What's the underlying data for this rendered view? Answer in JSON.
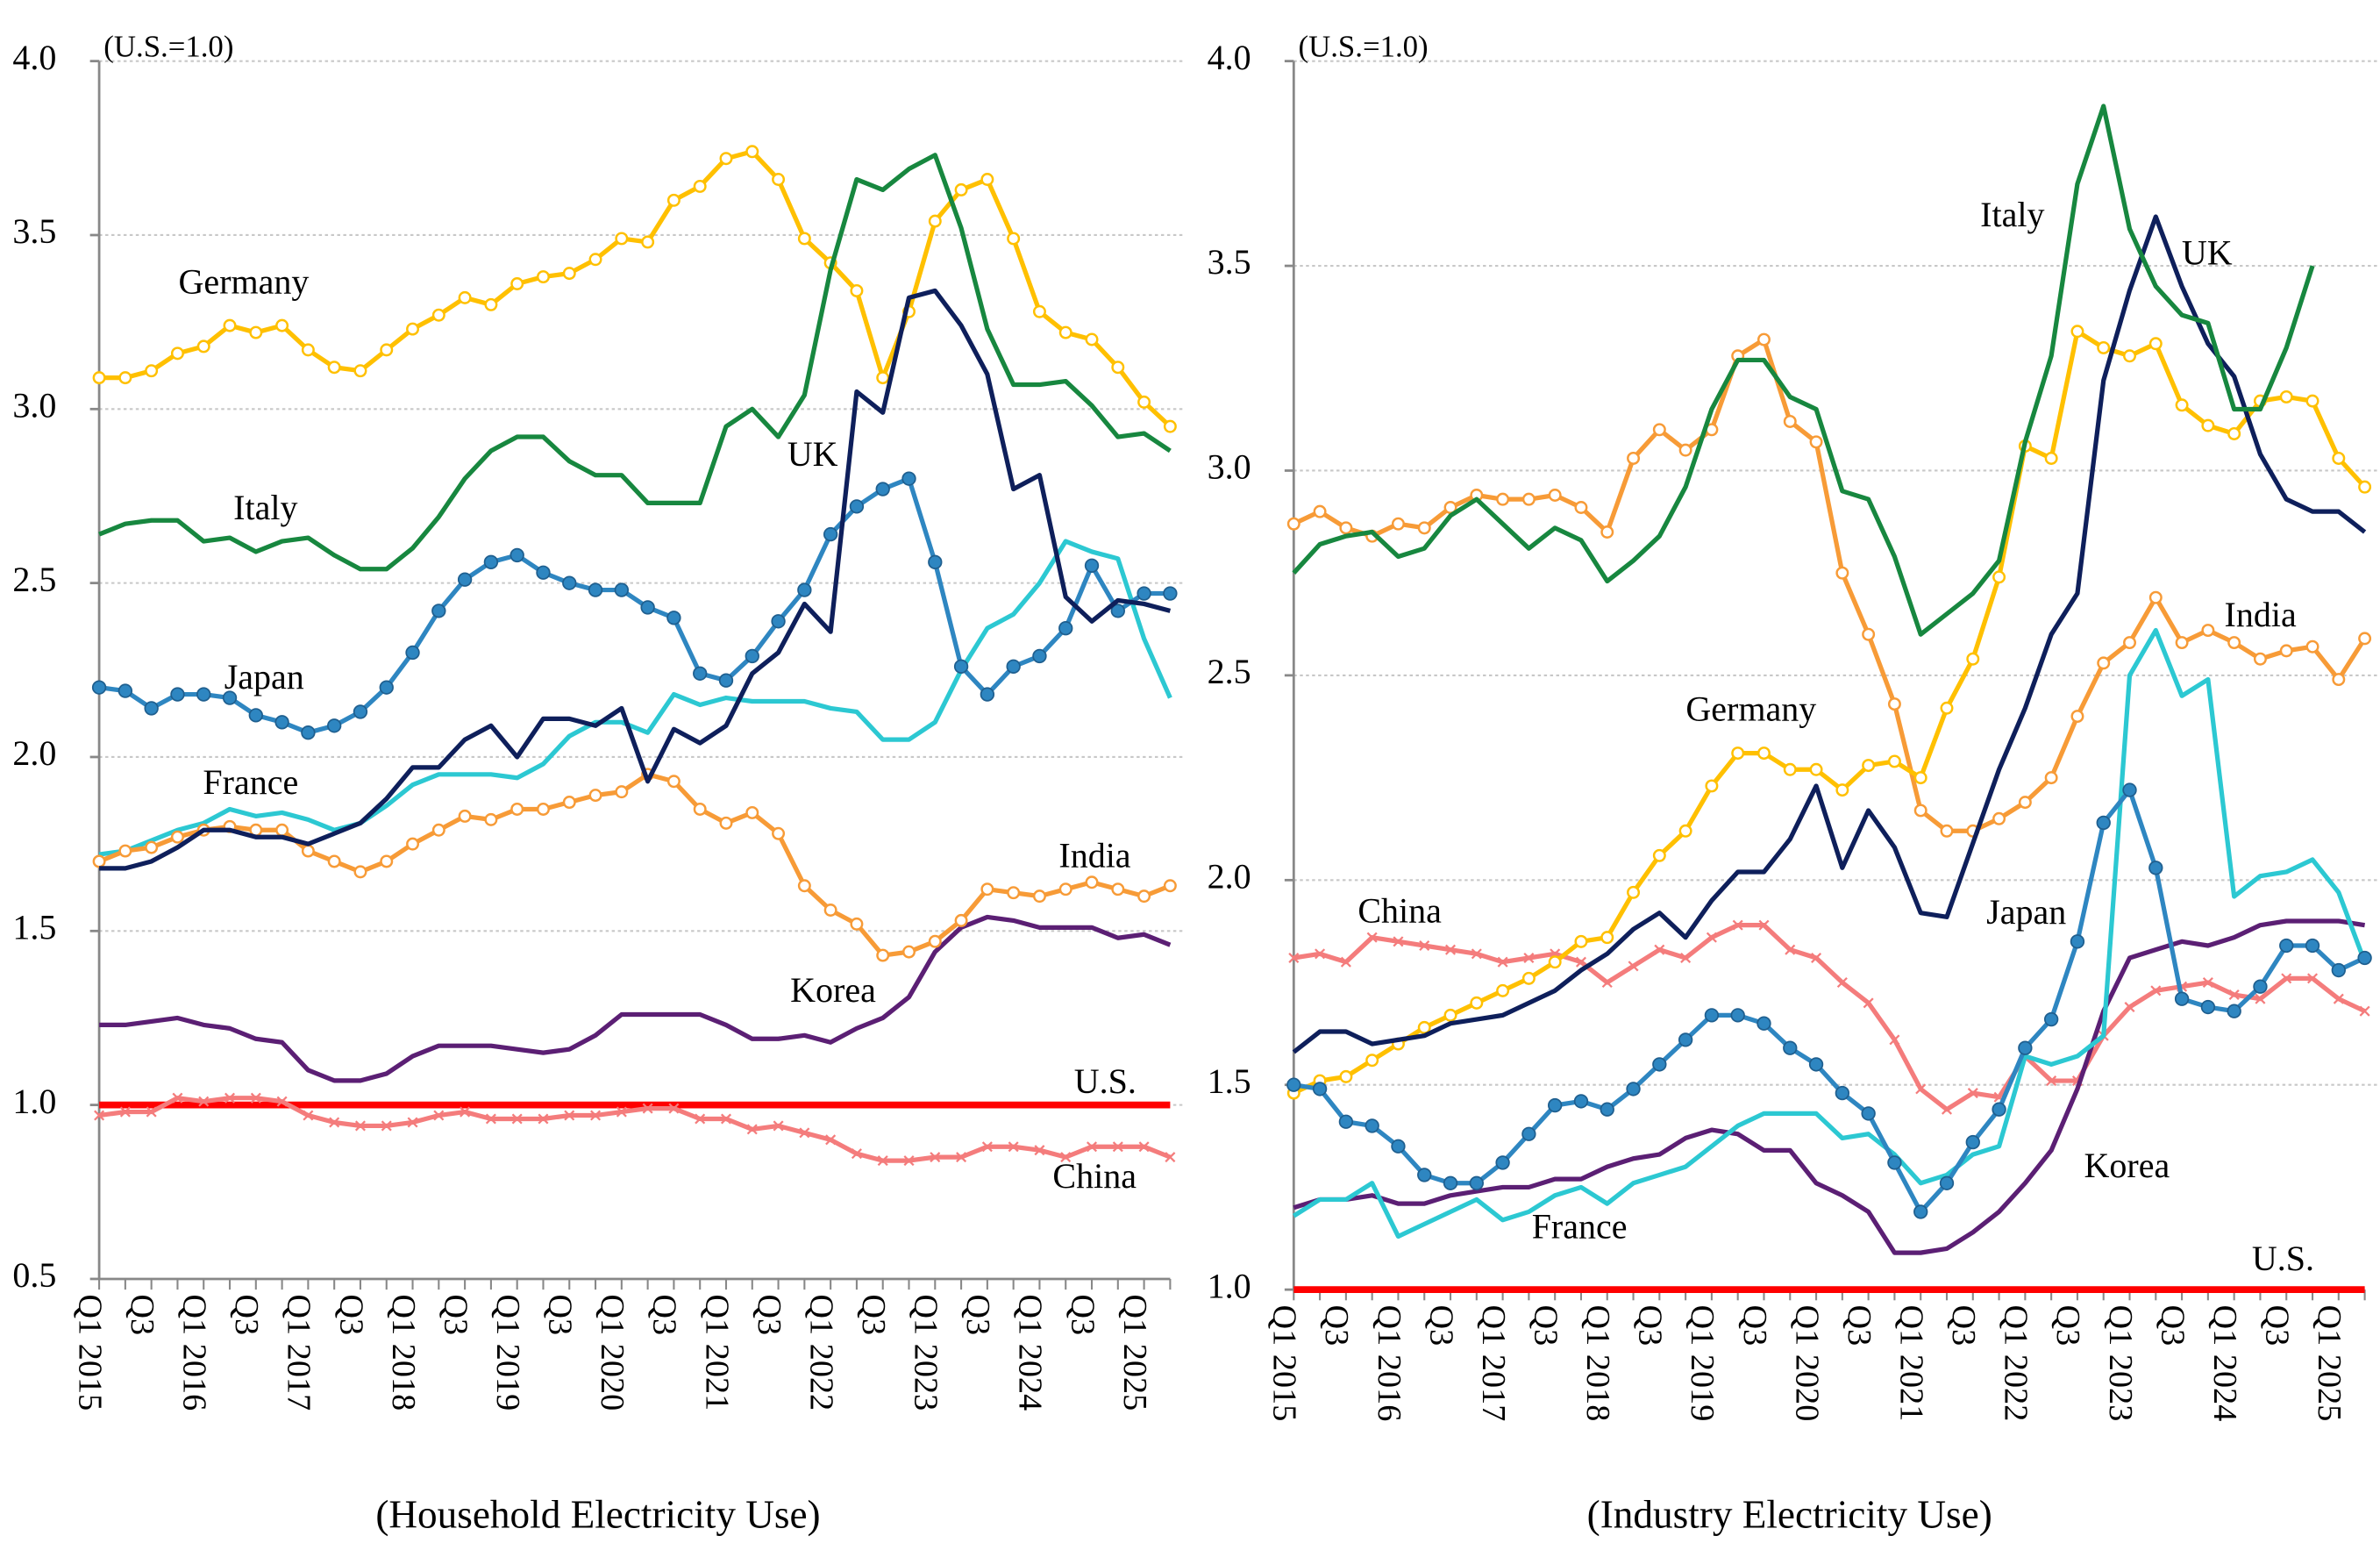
{
  "chart_data": [
    {
      "type": "line",
      "caption": "(Household Electricity Use)",
      "unit_label": "(U.S.=1.0)",
      "ylim": [
        0.5,
        4.0
      ],
      "yticks": [
        "0.5",
        "1.0",
        "1.5",
        "2.0",
        "2.5",
        "3.0",
        "3.5",
        "4.0"
      ],
      "grid": true,
      "x_start": "Q1 2015",
      "x_end": "Q2 2025",
      "series": [
        {
          "name": "Germany",
          "color": "#FFC000",
          "marker": "open-circle",
          "values": [
            3.09,
            3.09,
            3.11,
            3.16,
            3.18,
            3.24,
            3.22,
            3.24,
            3.17,
            3.12,
            3.11,
            3.17,
            3.23,
            3.27,
            3.32,
            3.3,
            3.36,
            3.38,
            3.39,
            3.43,
            3.49,
            3.48,
            3.6,
            3.64,
            3.72,
            3.74,
            3.66,
            3.49,
            3.42,
            3.34,
            3.09,
            3.28,
            3.54,
            3.63,
            3.66,
            3.49,
            3.28,
            3.22,
            3.2,
            3.12,
            3.02,
            2.95
          ]
        },
        {
          "name": "Italy",
          "color": "#17873F",
          "marker": "none",
          "values": [
            2.64,
            2.67,
            2.68,
            2.68,
            2.62,
            2.63,
            2.59,
            2.62,
            2.63,
            2.58,
            2.54,
            2.54,
            2.6,
            2.69,
            2.8,
            2.88,
            2.92,
            2.92,
            2.85,
            2.81,
            2.81,
            2.73,
            2.73,
            2.73,
            2.95,
            3.0,
            2.92,
            3.04,
            3.4,
            3.66,
            3.63,
            3.69,
            3.73,
            3.52,
            3.23,
            3.07,
            3.07,
            3.08,
            3.01,
            2.92,
            2.93,
            2.88
          ]
        },
        {
          "name": "UK",
          "color": "#0E1F5B",
          "marker": "none",
          "values": [
            1.68,
            1.68,
            1.7,
            1.74,
            1.79,
            1.79,
            1.77,
            1.77,
            1.75,
            1.78,
            1.81,
            1.88,
            1.97,
            1.97,
            2.05,
            2.09,
            2.0,
            2.11,
            2.11,
            2.09,
            2.14,
            1.93,
            2.08,
            2.04,
            2.09,
            2.24,
            2.3,
            2.44,
            2.36,
            3.05,
            2.99,
            3.32,
            3.34,
            3.24,
            3.1,
            2.77,
            2.81,
            2.46,
            2.39,
            2.45,
            2.44,
            2.42
          ]
        },
        {
          "name": "Japan",
          "color": "#2E86C1",
          "marker": "filled-circle",
          "values": [
            2.2,
            2.19,
            2.14,
            2.18,
            2.18,
            2.17,
            2.12,
            2.1,
            2.07,
            2.09,
            2.13,
            2.2,
            2.3,
            2.42,
            2.51,
            2.56,
            2.58,
            2.53,
            2.5,
            2.48,
            2.48,
            2.43,
            2.4,
            2.24,
            2.22,
            2.29,
            2.39,
            2.48,
            2.64,
            2.72,
            2.77,
            2.8,
            2.56,
            2.26,
            2.18,
            2.26,
            2.29,
            2.37,
            2.55,
            2.42,
            2.47,
            2.47
          ]
        },
        {
          "name": "France",
          "color": "#2CC8D2",
          "marker": "none",
          "values": [
            1.72,
            1.73,
            1.76,
            1.79,
            1.81,
            1.85,
            1.83,
            1.84,
            1.82,
            1.79,
            1.81,
            1.86,
            1.92,
            1.95,
            1.95,
            1.95,
            1.94,
            1.98,
            2.06,
            2.1,
            2.1,
            2.07,
            2.18,
            2.15,
            2.17,
            2.16,
            2.16,
            2.16,
            2.14,
            2.13,
            2.05,
            2.05,
            2.1,
            2.25,
            2.37,
            2.41,
            2.5,
            2.62,
            2.59,
            2.57,
            2.34,
            2.17
          ]
        },
        {
          "name": "India",
          "color": "#F79B37",
          "marker": "open-circle",
          "values": [
            1.7,
            1.73,
            1.74,
            1.77,
            1.79,
            1.8,
            1.79,
            1.79,
            1.73,
            1.7,
            1.67,
            1.7,
            1.75,
            1.79,
            1.83,
            1.82,
            1.85,
            1.85,
            1.87,
            1.89,
            1.9,
            1.95,
            1.93,
            1.85,
            1.81,
            1.84,
            1.78,
            1.63,
            1.56,
            1.52,
            1.43,
            1.44,
            1.47,
            1.53,
            1.62,
            1.61,
            1.6,
            1.62,
            1.64,
            1.62,
            1.6,
            1.63
          ]
        },
        {
          "name": "Korea",
          "color": "#5B1F74",
          "marker": "none",
          "values": [
            1.23,
            1.23,
            1.24,
            1.25,
            1.23,
            1.22,
            1.19,
            1.18,
            1.1,
            1.07,
            1.07,
            1.09,
            1.14,
            1.17,
            1.17,
            1.17,
            1.16,
            1.15,
            1.16,
            1.2,
            1.26,
            1.26,
            1.26,
            1.26,
            1.23,
            1.19,
            1.19,
            1.2,
            1.18,
            1.22,
            1.25,
            1.31,
            1.44,
            1.51,
            1.54,
            1.53,
            1.51,
            1.51,
            1.51,
            1.48,
            1.49,
            1.46
          ]
        },
        {
          "name": "China",
          "color": "#F47C7C",
          "marker": "x",
          "values": [
            0.97,
            0.98,
            0.98,
            1.02,
            1.01,
            1.02,
            1.02,
            1.01,
            0.97,
            0.95,
            0.94,
            0.94,
            0.95,
            0.97,
            0.98,
            0.96,
            0.96,
            0.96,
            0.97,
            0.97,
            0.98,
            0.99,
            0.99,
            0.96,
            0.96,
            0.93,
            0.94,
            0.92,
            0.9,
            0.86,
            0.84,
            0.84,
            0.85,
            0.85,
            0.88,
            0.88,
            0.87,
            0.85,
            0.88,
            0.88,
            0.88,
            0.85
          ]
        },
        {
          "name": "U.S.",
          "color": "#FF0000",
          "marker": "none",
          "values": [
            1,
            1,
            1,
            1,
            1,
            1,
            1,
            1,
            1,
            1,
            1,
            1,
            1,
            1,
            1,
            1,
            1,
            1,
            1,
            1,
            1,
            1,
            1,
            1,
            1,
            1,
            1,
            1,
            1,
            1,
            1,
            1,
            1,
            1,
            1,
            1,
            1,
            1,
            1,
            1,
            1,
            1
          ]
        }
      ]
    },
    {
      "type": "line",
      "caption": "(Industry Electricity Use)",
      "unit_label": "(U.S.=1.0)",
      "ylim": [
        1.0,
        4.0
      ],
      "yticks": [
        "1.0",
        "1.5",
        "2.0",
        "2.5",
        "3.0",
        "3.5",
        "4.0"
      ],
      "grid": true,
      "x_start": "Q1 2015",
      "x_end": "Q2 2025",
      "series": [
        {
          "name": "Italy",
          "color": "#17873F",
          "marker": "none",
          "values": [
            2.75,
            2.82,
            2.84,
            2.85,
            2.79,
            2.81,
            2.89,
            2.93,
            2.87,
            2.81,
            2.86,
            2.83,
            2.73,
            2.78,
            2.84,
            2.96,
            3.15,
            3.27,
            3.27,
            3.18,
            3.15,
            2.95,
            2.93,
            2.79,
            2.6,
            2.65,
            2.7,
            2.78,
            3.07,
            3.28,
            3.7,
            3.89,
            3.59,
            3.45,
            3.38,
            3.36,
            3.15,
            3.15,
            3.3,
            3.5,
            null,
            null
          ]
        },
        {
          "name": "UK",
          "color": "#0E1F5B",
          "marker": "none",
          "values": [
            1.58,
            1.63,
            1.63,
            1.6,
            1.61,
            1.62,
            1.65,
            1.66,
            1.67,
            1.7,
            1.73,
            1.78,
            1.82,
            1.88,
            1.92,
            1.86,
            1.95,
            2.02,
            2.02,
            2.1,
            2.23,
            2.03,
            2.17,
            2.08,
            1.92,
            1.91,
            2.09,
            2.27,
            2.42,
            2.6,
            2.7,
            3.22,
            3.44,
            3.62,
            3.45,
            3.31,
            3.23,
            3.04,
            2.93,
            2.9,
            2.9,
            2.85
          ]
        },
        {
          "name": "India",
          "color": "#F79B37",
          "marker": "open-circle",
          "values": [
            2.87,
            2.9,
            2.86,
            2.84,
            2.87,
            2.86,
            2.91,
            2.94,
            2.93,
            2.93,
            2.94,
            2.91,
            2.85,
            3.03,
            3.1,
            3.05,
            3.1,
            3.28,
            3.32,
            3.12,
            3.07,
            2.75,
            2.6,
            2.43,
            2.17,
            2.12,
            2.12,
            2.15,
            2.19,
            2.25,
            2.4,
            2.53,
            2.58,
            2.69,
            2.58,
            2.61,
            2.58,
            2.54,
            2.56,
            2.57,
            2.49,
            2.59
          ]
        },
        {
          "name": "Germany",
          "color": "#FFC000",
          "marker": "open-circle",
          "values": [
            1.48,
            1.51,
            1.52,
            1.56,
            1.6,
            1.64,
            1.67,
            1.7,
            1.73,
            1.76,
            1.8,
            1.85,
            1.86,
            1.97,
            2.06,
            2.12,
            2.23,
            2.31,
            2.31,
            2.27,
            2.27,
            2.22,
            2.28,
            2.29,
            2.25,
            2.42,
            2.54,
            2.74,
            3.06,
            3.03,
            3.34,
            3.3,
            3.28,
            3.31,
            3.16,
            3.11,
            3.09,
            3.17,
            3.18,
            3.17,
            3.03,
            2.96
          ]
        },
        {
          "name": "China",
          "color": "#F47C7C",
          "marker": "x",
          "values": [
            1.81,
            1.82,
            1.8,
            1.86,
            1.85,
            1.84,
            1.83,
            1.82,
            1.8,
            1.81,
            1.82,
            1.8,
            1.75,
            1.79,
            1.83,
            1.81,
            1.86,
            1.89,
            1.89,
            1.83,
            1.81,
            1.75,
            1.7,
            1.61,
            1.49,
            1.44,
            1.48,
            1.47,
            1.57,
            1.51,
            1.51,
            1.62,
            1.69,
            1.73,
            1.74,
            1.75,
            1.72,
            1.71,
            1.76,
            1.76,
            1.71,
            1.68
          ]
        },
        {
          "name": "Japan",
          "color": "#2E86C1",
          "marker": "filled-circle",
          "values": [
            1.5,
            1.49,
            1.41,
            1.4,
            1.35,
            1.28,
            1.26,
            1.26,
            1.31,
            1.38,
            1.45,
            1.46,
            1.44,
            1.49,
            1.55,
            1.61,
            1.67,
            1.67,
            1.65,
            1.59,
            1.55,
            1.48,
            1.43,
            1.31,
            1.19,
            1.26,
            1.36,
            1.44,
            1.59,
            1.66,
            1.85,
            2.14,
            2.22,
            2.03,
            1.71,
            1.69,
            1.68,
            1.74,
            1.84,
            1.84,
            1.78,
            1.81
          ]
        },
        {
          "name": "France",
          "color": "#2CC8D2",
          "marker": "none",
          "values": [
            1.18,
            1.22,
            1.22,
            1.26,
            1.13,
            1.16,
            1.19,
            1.22,
            1.17,
            1.19,
            1.23,
            1.25,
            1.21,
            1.26,
            1.28,
            1.3,
            1.35,
            1.4,
            1.43,
            1.43,
            1.43,
            1.37,
            1.38,
            1.33,
            1.26,
            1.28,
            1.33,
            1.35,
            1.57,
            1.55,
            1.57,
            1.62,
            2.5,
            2.61,
            2.45,
            2.49,
            1.96,
            2.01,
            2.02,
            2.05,
            1.97,
            1.8
          ]
        },
        {
          "name": "Korea",
          "color": "#5B1F74",
          "marker": "none",
          "values": [
            1.2,
            1.22,
            1.22,
            1.23,
            1.21,
            1.21,
            1.23,
            1.24,
            1.25,
            1.25,
            1.27,
            1.27,
            1.3,
            1.32,
            1.33,
            1.37,
            1.39,
            1.38,
            1.34,
            1.34,
            1.26,
            1.23,
            1.19,
            1.09,
            1.09,
            1.1,
            1.14,
            1.19,
            1.26,
            1.34,
            1.49,
            1.68,
            1.81,
            1.83,
            1.85,
            1.84,
            1.86,
            1.89,
            1.9,
            1.9,
            1.9,
            1.89
          ]
        },
        {
          "name": "U.S.",
          "color": "#FF0000",
          "marker": "none",
          "values": [
            1,
            1,
            1,
            1,
            1,
            1,
            1,
            1,
            1,
            1,
            1,
            1,
            1,
            1,
            1,
            1,
            1,
            1,
            1,
            1,
            1,
            1,
            1,
            1,
            1,
            1,
            1,
            1,
            1,
            1,
            1,
            1,
            1,
            1,
            1,
            1,
            1,
            1,
            1,
            1,
            1,
            1
          ]
        }
      ]
    }
  ],
  "x_tick_labels": [
    "Q1 2015",
    "Q3",
    "Q1 2016",
    "Q3",
    "Q1 2017",
    "Q3",
    "Q1 2018",
    "Q3",
    "Q1 2019",
    "Q3",
    "Q1 2020",
    "Q3",
    "Q1 2021",
    "Q3",
    "Q1 2022",
    "Q3",
    "Q1 2023",
    "Q3",
    "Q1 2024",
    "Q3",
    "Q1 2025"
  ]
}
